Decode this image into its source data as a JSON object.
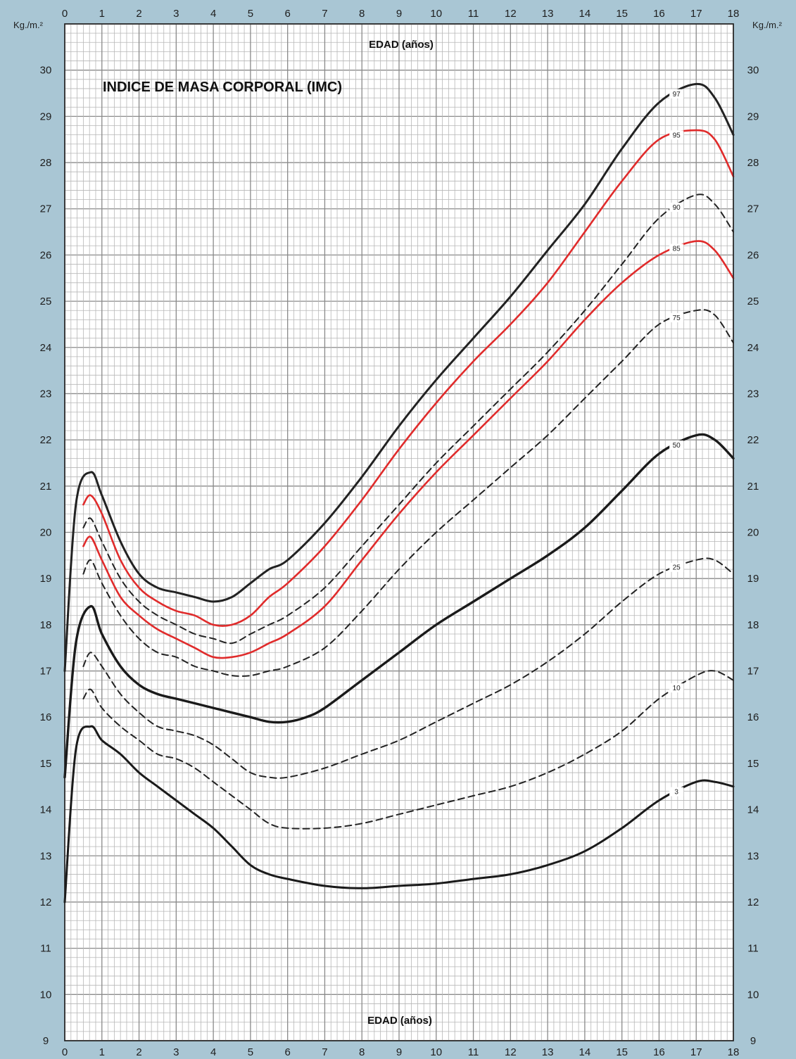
{
  "chart_data": {
    "type": "line",
    "title": "INDICE DE MASA CORPORAL (IMC)",
    "xlabel": "EDAD (años)",
    "ylabel_left": "Kg./m.²",
    "ylabel_right": "Kg./m.²",
    "xlim": [
      0,
      18
    ],
    "ylim": [
      9,
      31
    ],
    "x_ticks": [
      "0",
      "1",
      "2",
      "3",
      "4",
      "5",
      "6",
      "7",
      "8",
      "9",
      "10",
      "11",
      "12",
      "13",
      "14",
      "15",
      "16",
      "17",
      "18"
    ],
    "y_ticks": [
      "9",
      "10",
      "11",
      "12",
      "13",
      "14",
      "15",
      "16",
      "17",
      "18",
      "19",
      "20",
      "21",
      "22",
      "23",
      "24",
      "25",
      "26",
      "27",
      "28",
      "29",
      "30"
    ],
    "grid": true,
    "legend": "inline-labels",
    "series": [
      {
        "name": "97",
        "color": "#222222",
        "style": "solid",
        "width": 3,
        "x": [
          0,
          0.3,
          0.7,
          1,
          1.5,
          2,
          2.5,
          3,
          3.5,
          4,
          4.5,
          5,
          5.5,
          6,
          7,
          8,
          9,
          10,
          11,
          12,
          13,
          14,
          15,
          16,
          17,
          17.5,
          18
        ],
        "y": [
          17,
          20.6,
          21.3,
          20.8,
          19.8,
          19.1,
          18.8,
          18.7,
          18.6,
          18.5,
          18.6,
          18.9,
          19.2,
          19.4,
          20.2,
          21.2,
          22.3,
          23.3,
          24.2,
          25.1,
          26.1,
          27.1,
          28.3,
          29.3,
          29.7,
          29.4,
          28.6
        ]
      },
      {
        "name": "95",
        "color": "#e02b2b",
        "style": "solid",
        "width": 2.6,
        "x": [
          0.5,
          0.7,
          1,
          1.5,
          2,
          2.5,
          3,
          3.5,
          4,
          4.5,
          5,
          5.5,
          6,
          7,
          8,
          9,
          10,
          11,
          12,
          13,
          14,
          15,
          16,
          17,
          17.5,
          18
        ],
        "y": [
          20.6,
          20.8,
          20.4,
          19.4,
          18.8,
          18.5,
          18.3,
          18.2,
          18.0,
          18.0,
          18.2,
          18.6,
          18.9,
          19.7,
          20.7,
          21.8,
          22.8,
          23.7,
          24.5,
          25.4,
          26.5,
          27.6,
          28.5,
          28.7,
          28.5,
          27.7
        ]
      },
      {
        "name": "90",
        "color": "#222222",
        "style": "dashed",
        "width": 2,
        "x": [
          0.5,
          0.7,
          1,
          1.5,
          2,
          2.5,
          3,
          3.5,
          4,
          4.5,
          5,
          5.5,
          6,
          7,
          8,
          9,
          10,
          11,
          12,
          13,
          14,
          15,
          16,
          17,
          17.5,
          18
        ],
        "y": [
          20.1,
          20.3,
          19.8,
          19.0,
          18.5,
          18.2,
          18.0,
          17.8,
          17.7,
          17.6,
          17.8,
          18.0,
          18.2,
          18.8,
          19.7,
          20.6,
          21.5,
          22.3,
          23.1,
          23.9,
          24.8,
          25.8,
          26.8,
          27.3,
          27.1,
          26.5
        ]
      },
      {
        "name": "85",
        "color": "#e02b2b",
        "style": "solid",
        "width": 2.6,
        "x": [
          0.5,
          0.7,
          1,
          1.5,
          2,
          2.5,
          3,
          3.5,
          4,
          4.5,
          5,
          5.5,
          6,
          7,
          8,
          9,
          10,
          11,
          12,
          13,
          14,
          15,
          16,
          17,
          17.5,
          18
        ],
        "y": [
          19.7,
          19.9,
          19.4,
          18.6,
          18.2,
          17.9,
          17.7,
          17.5,
          17.3,
          17.3,
          17.4,
          17.6,
          17.8,
          18.4,
          19.4,
          20.4,
          21.3,
          22.1,
          22.9,
          23.7,
          24.6,
          25.4,
          26.0,
          26.3,
          26.1,
          25.5
        ]
      },
      {
        "name": "75",
        "color": "#222222",
        "style": "dashed",
        "width": 2,
        "x": [
          0.5,
          0.7,
          1,
          1.5,
          2,
          2.5,
          3,
          3.5,
          4,
          4.5,
          5,
          5.5,
          6,
          7,
          8,
          9,
          10,
          11,
          12,
          13,
          14,
          15,
          16,
          17,
          17.5,
          18
        ],
        "y": [
          19.1,
          19.4,
          18.9,
          18.2,
          17.7,
          17.4,
          17.3,
          17.1,
          17.0,
          16.9,
          16.9,
          17.0,
          17.1,
          17.5,
          18.3,
          19.2,
          20.0,
          20.7,
          21.4,
          22.1,
          22.9,
          23.7,
          24.5,
          24.8,
          24.7,
          24.1
        ]
      },
      {
        "name": "50",
        "color": "#1a1a1a",
        "style": "solid",
        "width": 3.4,
        "x": [
          0,
          0.3,
          0.7,
          1,
          1.5,
          2,
          2.5,
          3,
          3.5,
          4,
          4.5,
          5,
          5.5,
          6,
          6.5,
          7,
          8,
          9,
          10,
          11,
          12,
          13,
          14,
          15,
          16,
          17,
          17.5,
          18
        ],
        "y": [
          14.7,
          17.6,
          18.4,
          17.8,
          17.1,
          16.7,
          16.5,
          16.4,
          16.3,
          16.2,
          16.1,
          16.0,
          15.9,
          15.9,
          16.0,
          16.2,
          16.8,
          17.4,
          18.0,
          18.5,
          19.0,
          19.5,
          20.1,
          20.9,
          21.7,
          22.1,
          22.0,
          21.6
        ]
      },
      {
        "name": "25",
        "color": "#222222",
        "style": "dashed",
        "width": 2,
        "x": [
          0.5,
          0.7,
          1,
          1.5,
          2,
          2.5,
          3,
          3.5,
          4,
          4.5,
          5,
          5.5,
          6,
          7,
          8,
          9,
          10,
          11,
          12,
          13,
          14,
          15,
          16,
          17,
          17.5,
          18
        ],
        "y": [
          17.1,
          17.4,
          17.1,
          16.5,
          16.1,
          15.8,
          15.7,
          15.6,
          15.4,
          15.1,
          14.8,
          14.7,
          14.7,
          14.9,
          15.2,
          15.5,
          15.9,
          16.3,
          16.7,
          17.2,
          17.8,
          18.5,
          19.1,
          19.4,
          19.4,
          19.1
        ]
      },
      {
        "name": "10",
        "color": "#222222",
        "style": "dashed",
        "width": 2,
        "x": [
          0.5,
          0.7,
          1,
          1.5,
          2,
          2.5,
          3,
          3.5,
          4,
          4.5,
          5,
          5.5,
          6,
          7,
          8,
          9,
          10,
          11,
          12,
          13,
          14,
          15,
          16,
          17,
          17.5,
          18
        ],
        "y": [
          16.4,
          16.6,
          16.2,
          15.8,
          15.5,
          15.2,
          15.1,
          14.9,
          14.6,
          14.3,
          14.0,
          13.7,
          13.6,
          13.6,
          13.7,
          13.9,
          14.1,
          14.3,
          14.5,
          14.8,
          15.2,
          15.7,
          16.4,
          16.9,
          17.0,
          16.8
        ]
      },
      {
        "name": "3",
        "color": "#1a1a1a",
        "style": "solid",
        "width": 3,
        "x": [
          0,
          0.3,
          0.7,
          1,
          1.5,
          2,
          2.5,
          3,
          3.5,
          4,
          4.5,
          5,
          5.5,
          6,
          7,
          8,
          9,
          10,
          11,
          12,
          13,
          14,
          15,
          16,
          17,
          17.5,
          18
        ],
        "y": [
          12,
          15.3,
          15.8,
          15.5,
          15.2,
          14.8,
          14.5,
          14.2,
          13.9,
          13.6,
          13.2,
          12.8,
          12.6,
          12.5,
          12.35,
          12.3,
          12.35,
          12.4,
          12.5,
          12.6,
          12.8,
          13.1,
          13.6,
          14.2,
          14.6,
          14.6,
          14.5
        ]
      }
    ]
  }
}
